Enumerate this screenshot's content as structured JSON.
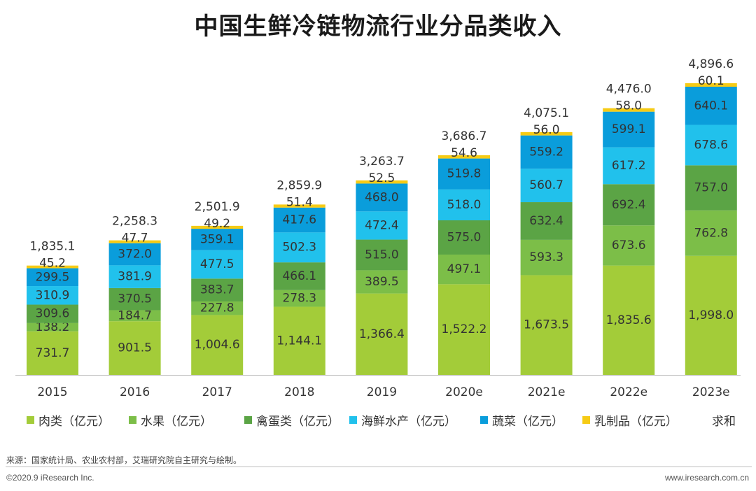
{
  "chart_data": {
    "type": "bar",
    "stacked": true,
    "title": "中国生鲜冷链物流行业分品类收入",
    "categories": [
      "2015",
      "2016",
      "2017",
      "2018",
      "2019",
      "2020e",
      "2021e",
      "2022e",
      "2023e"
    ],
    "series": [
      {
        "name": "肉类（亿元）",
        "color": "#a3cc39",
        "values": [
          731.7,
          901.5,
          1004.6,
          1144.1,
          1366.4,
          1522.2,
          1673.5,
          1835.6,
          1998.0
        ],
        "labels": [
          "731.7",
          "901.5",
          "1,004.6",
          "1,144.1",
          "1,366.4",
          "1,522.2",
          "1,673.5",
          "1,835.6",
          "1,998.0"
        ]
      },
      {
        "name": "水果（亿元）",
        "color": "#7cbe48",
        "values": [
          138.2,
          184.7,
          227.8,
          278.3,
          389.5,
          497.1,
          593.3,
          673.6,
          762.8
        ],
        "labels": [
          "138.2",
          "184.7",
          "227.8",
          "278.3",
          "389.5",
          "497.1",
          "593.3",
          "673.6",
          "762.8"
        ]
      },
      {
        "name": "禽蛋类（亿元）",
        "color": "#5ba445",
        "values": [
          309.6,
          370.5,
          383.7,
          466.1,
          515.0,
          575.0,
          632.4,
          692.4,
          757.0
        ],
        "labels": [
          "309.6",
          "370.5",
          "383.7",
          "466.1",
          "515.0",
          "575.0",
          "632.4",
          "692.4",
          "757.0"
        ]
      },
      {
        "name": "海鲜水产（亿元）",
        "color": "#21c1ec",
        "values": [
          310.9,
          381.9,
          477.5,
          502.3,
          472.4,
          518.0,
          560.7,
          617.2,
          678.6
        ],
        "labels": [
          "310.9",
          "381.9",
          "477.5",
          "502.3",
          "472.4",
          "518.0",
          "560.7",
          "617.2",
          "678.6"
        ]
      },
      {
        "name": "蔬菜（亿元）",
        "color": "#0a9ddb",
        "values": [
          299.5,
          372.0,
          359.1,
          417.6,
          468.0,
          519.8,
          559.2,
          599.1,
          640.1
        ],
        "labels": [
          "299.5",
          "372.0",
          "359.1",
          "417.6",
          "468.0",
          "519.8",
          "559.2",
          "599.1",
          "640.1"
        ]
      },
      {
        "name": "乳制品（亿元）",
        "color": "#f6cb15",
        "values": [
          45.2,
          47.7,
          49.2,
          51.4,
          52.5,
          54.6,
          56.0,
          58.0,
          60.1
        ],
        "labels": [
          "45.2",
          "47.7",
          "49.2",
          "51.4",
          "52.5",
          "54.6",
          "56.0",
          "58.0",
          "60.1"
        ]
      }
    ],
    "totals": {
      "name": "求和",
      "values": [
        1835.1,
        2258.3,
        2501.9,
        2859.9,
        3263.7,
        3686.7,
        4075.1,
        4476.0,
        4896.6
      ],
      "labels": [
        "1,835.1",
        "2,258.3",
        "2,501.9",
        "2,859.9",
        "3,263.7",
        "3,686.7",
        "4,075.1",
        "4,476.0",
        "4,896.6"
      ]
    },
    "ylim": [
      0,
      5400
    ],
    "grid": false,
    "legend_position": "bottom"
  },
  "footer": {
    "source": "来源：国家统计局、农业农村部，艾瑞研究院自主研究与绘制。",
    "copyright": "©2020.9 iResearch Inc.",
    "website": "www.iresearch.com.cn"
  }
}
